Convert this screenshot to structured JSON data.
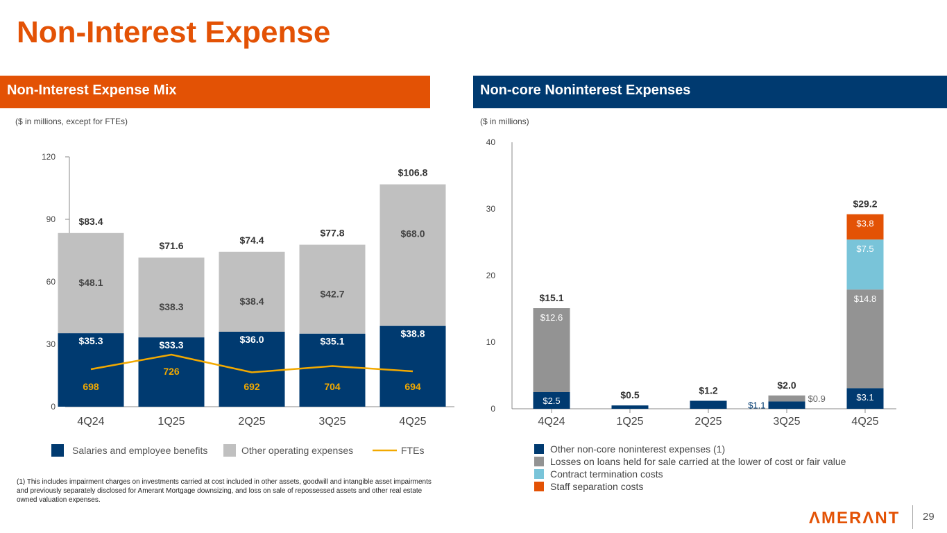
{
  "page_title": "Non-Interest Expense",
  "left_header": "Non-Interest Expense Mix",
  "right_header": "Non-core Noninterest Expenses",
  "footnote": "(1)  This includes impairment charges on investments carried at cost included in other assets, goodwill and  intangible asset impairments and previously separately disclosed for Amerant Mortgage downsizing, and loss on sale of repossessed assets and other real estate owned valuation expenses.",
  "logo": "AMERANT",
  "page_number": "29",
  "colors": {
    "orange": "#e35205",
    "navy": "#003a70",
    "lightgray": "#c0c0c0",
    "gray": "#939393",
    "teal": "#79c4d9",
    "fte": "#f2a900"
  },
  "chart_data": [
    {
      "type": "bar",
      "subtitle": "($ in millions, except for FTEs)",
      "categories": [
        "4Q24",
        "1Q25",
        "2Q25",
        "3Q25",
        "4Q25"
      ],
      "ylim": [
        0,
        120
      ],
      "yticks": [
        0,
        30,
        60,
        90,
        120
      ],
      "series": [
        {
          "name": "Salaries and employee benefits",
          "values": [
            35.3,
            33.3,
            36.0,
            35.1,
            38.8
          ],
          "labels": [
            "$35.3",
            "$33.3",
            "$36.0",
            "$35.1",
            "$38.8"
          ]
        },
        {
          "name": "Other operating expenses",
          "values": [
            48.1,
            38.3,
            38.4,
            42.7,
            68.0
          ],
          "labels": [
            "$48.1",
            "$38.3",
            "$38.4",
            "$42.7",
            "$68.0"
          ]
        }
      ],
      "totals": [
        "$83.4",
        "$71.6",
        "$74.4",
        "$77.8",
        "$106.8"
      ],
      "line": {
        "name": "FTEs",
        "values": [
          698,
          726,
          692,
          704,
          694
        ]
      },
      "legend_position": "bottom"
    },
    {
      "type": "bar",
      "subtitle": "($ in millions)",
      "categories": [
        "4Q24",
        "1Q25",
        "2Q25",
        "3Q25",
        "4Q25"
      ],
      "ylim": [
        0,
        40
      ],
      "yticks": [
        0,
        10,
        20,
        30,
        40
      ],
      "series": [
        {
          "name": "Other non-core noninterest expenses (1)",
          "values": [
            2.5,
            0.5,
            1.2,
            1.1,
            3.1
          ],
          "labels": [
            "$2.5",
            "",
            "",
            "$1.1",
            "$3.1"
          ]
        },
        {
          "name": "Losses on loans held for sale carried at the lower of cost or fair value",
          "values": [
            12.6,
            0,
            0,
            0.9,
            14.8
          ],
          "labels": [
            "$12.6",
            "",
            "",
            "$0.9",
            "$14.8"
          ]
        },
        {
          "name": "Contract termination costs",
          "values": [
            0,
            0,
            0,
            0,
            7.5
          ],
          "labels": [
            "",
            "",
            "",
            "",
            "$7.5"
          ]
        },
        {
          "name": "Staff separation costs",
          "values": [
            0,
            0,
            0,
            0,
            3.8
          ],
          "labels": [
            "",
            "",
            "",
            "",
            "$3.8"
          ]
        }
      ],
      "totals": [
        "$15.1",
        "$0.5",
        "$1.2",
        "$2.0",
        "$29.2"
      ],
      "legend_position": "bottom-left"
    }
  ]
}
